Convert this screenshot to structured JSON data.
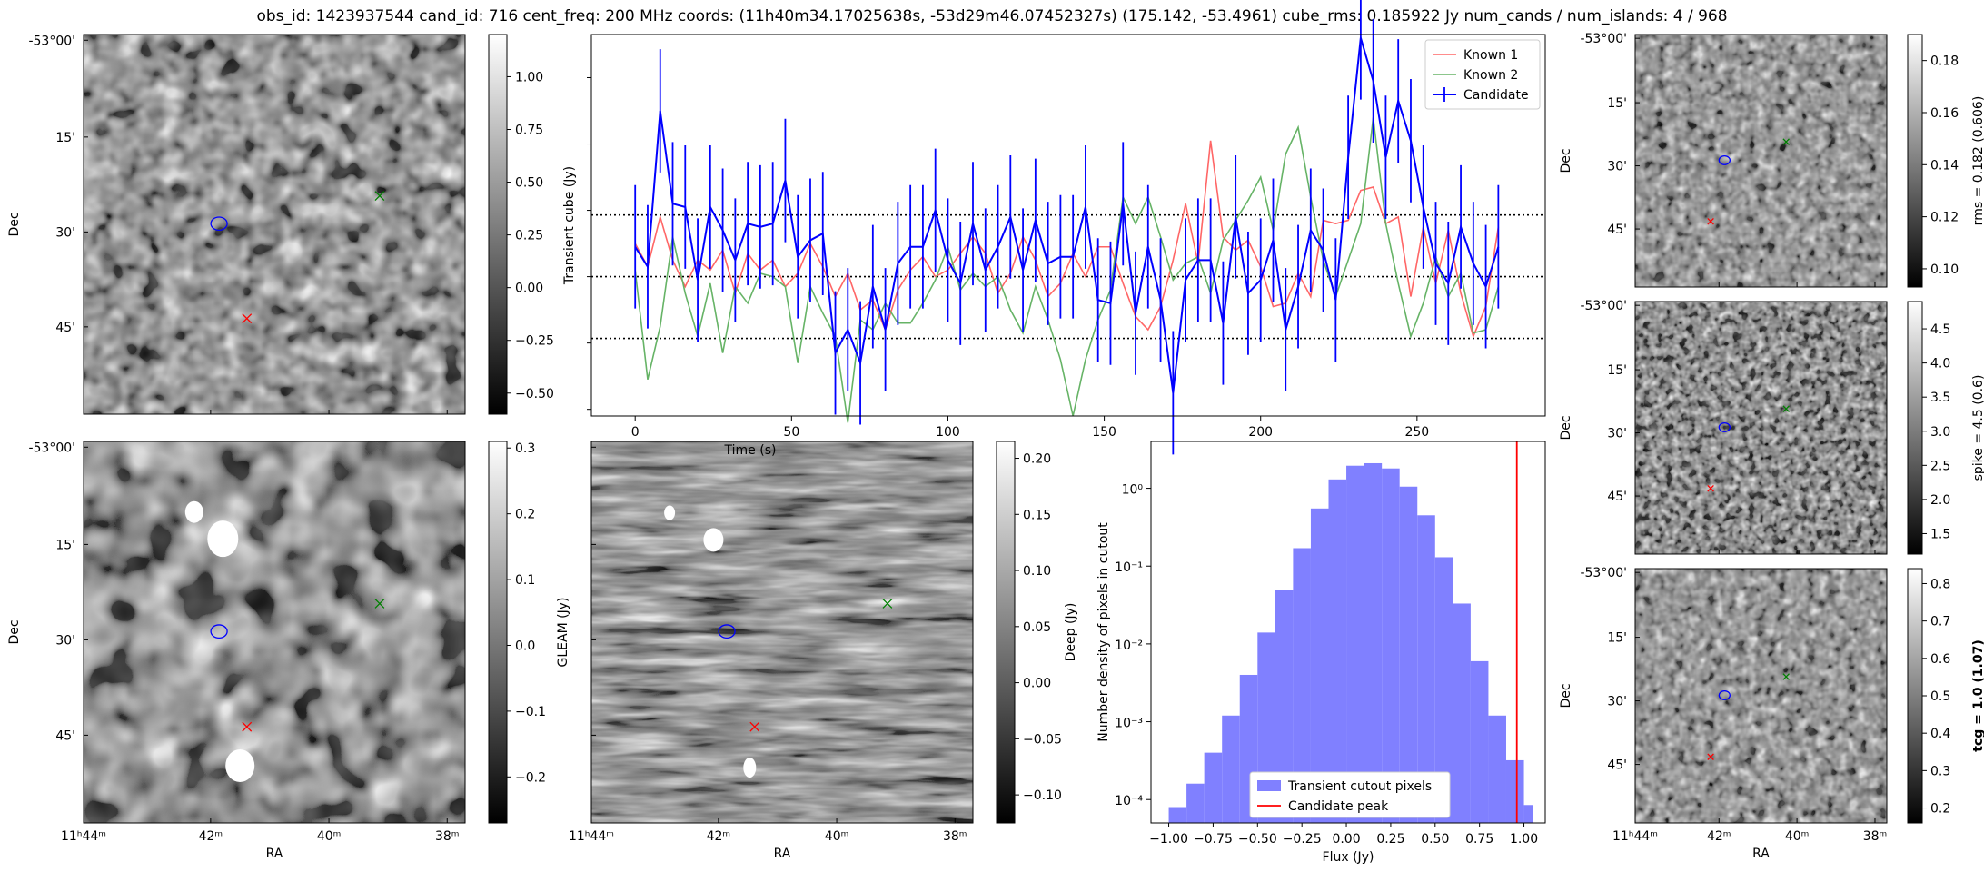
{
  "title": "obs_id: 1423937544 cand_id: 716 cent_freq: 200 MHz coords: (11h40m34.17025638s, -53d29m46.07452327s) (175.142, -53.4961) cube_rms: 0.185922 Jy num_cands / num_islands: 4 / 968",
  "colors": {
    "candidate": "#0000ff",
    "known1": "#ff6666",
    "known2": "#66b366",
    "hist": "#8080ff",
    "peak": "#ff0000",
    "marker_known1": "#ff0000",
    "marker_known2": "#008000"
  },
  "sky_axes": {
    "dec_ticks": [
      "-53°00'",
      "15'",
      "30'",
      "45'"
    ],
    "ra_ticks": [
      "11ʰ44ᵐ",
      "42ᵐ",
      "40ᵐ",
      "38ᵐ"
    ],
    "ra_label": "RA",
    "dec_label": "Dec"
  },
  "chart_data": [
    {
      "id": "transient_cube_image",
      "type": "heatmap",
      "xlabel": "",
      "ylabel": "Dec",
      "colorbar": {
        "label": "",
        "ticks": [
          1.0,
          0.75,
          0.5,
          0.25,
          0.0,
          -0.25,
          -0.5
        ],
        "range": [
          -0.6,
          1.2
        ]
      }
    },
    {
      "id": "lightcurve",
      "type": "line",
      "xlabel": "Time (s)",
      "ylabel": "Transient cube (Jy)",
      "xlim": [
        -14,
        291
      ],
      "ylim": [
        -0.42,
        0.73
      ],
      "xticks": [
        0,
        50,
        100,
        150,
        200,
        250
      ],
      "hlines": [
        0.186,
        0.0,
        -0.186
      ],
      "legend": [
        "Known 1",
        "Known 2",
        "Candidate"
      ],
      "x": [
        0,
        4,
        8,
        12,
        16,
        20,
        24,
        28,
        32,
        36,
        40,
        44,
        48,
        52,
        56,
        60,
        64,
        68,
        72,
        76,
        80,
        84,
        88,
        92,
        96,
        100,
        104,
        108,
        112,
        116,
        120,
        124,
        128,
        132,
        136,
        140,
        144,
        148,
        152,
        156,
        160,
        164,
        168,
        172,
        176,
        180,
        184,
        188,
        192,
        196,
        200,
        204,
        208,
        212,
        216,
        220,
        224,
        228,
        232,
        236,
        240,
        244,
        248,
        252,
        256,
        260,
        264,
        268,
        272,
        276
      ],
      "series": [
        {
          "name": "Known 1",
          "values": [
            0.1,
            0.03,
            0.18,
            0.05,
            -0.03,
            0.05,
            0.02,
            0.08,
            -0.05,
            0.07,
            0.02,
            0.05,
            -0.03,
            0.01,
            0.1,
            0.03,
            -0.06,
            0.01,
            -0.1,
            -0.07,
            -0.16,
            -0.04,
            0.02,
            0.06,
            0.0,
            0.02,
            0.07,
            0.12,
            0.07,
            -0.05,
            0.01,
            0.12,
            0.05,
            -0.06,
            -0.02,
            0.07,
            0.0,
            0.09,
            0.09,
            -0.02,
            -0.12,
            -0.16,
            -0.09,
            0.05,
            0.22,
            0.04,
            0.41,
            0.12,
            0.08,
            0.11,
            0.03,
            -0.09,
            -0.08,
            0.01,
            -0.06,
            0.17,
            0.16,
            0.17,
            0.26,
            0.27,
            0.16,
            0.18,
            -0.06,
            0.15,
            -0.02,
            0.14,
            -0.05,
            -0.18,
            -0.09,
            0.15
          ]
        },
        {
          "name": "Known 2",
          "values": [
            0.02,
            -0.31,
            -0.15,
            0.12,
            -0.05,
            -0.18,
            -0.02,
            -0.23,
            -0.03,
            -0.08,
            0.01,
            0.0,
            -0.03,
            -0.26,
            -0.03,
            -0.11,
            -0.18,
            -0.44,
            -0.13,
            -0.16,
            -0.08,
            -0.14,
            -0.14,
            -0.08,
            -0.01,
            0.09,
            -0.04,
            0.01,
            -0.03,
            0.0,
            -0.1,
            -0.17,
            -0.03,
            -0.13,
            -0.25,
            -0.42,
            -0.25,
            -0.13,
            -0.04,
            0.24,
            0.16,
            0.24,
            0.12,
            -0.01,
            0.04,
            0.06,
            -0.05,
            0.11,
            0.17,
            0.23,
            0.3,
            0.14,
            0.37,
            0.45,
            0.24,
            0.05,
            -0.06,
            0.05,
            0.16,
            0.48,
            0.16,
            -0.02,
            -0.18,
            -0.08,
            0.06,
            -0.06,
            0.01,
            -0.17,
            -0.16,
            -0.03
          ]
        },
        {
          "name": "Candidate",
          "values": [
            0.09,
            0.03,
            0.5,
            0.22,
            0.21,
            -0.01,
            0.21,
            0.14,
            0.05,
            0.16,
            0.15,
            0.16,
            0.29,
            0.06,
            0.11,
            0.13,
            -0.23,
            -0.16,
            -0.26,
            -0.03,
            -0.16,
            0.04,
            0.09,
            0.09,
            0.2,
            0.05,
            -0.02,
            0.16,
            0.02,
            0.09,
            0.18,
            0.02,
            0.17,
            0.04,
            0.06,
            0.06,
            0.21,
            -0.07,
            -0.08,
            0.22,
            -0.11,
            0.09,
            -0.07,
            -0.35,
            -0.01,
            0.05,
            0.05,
            -0.14,
            0.18,
            -0.05,
            -0.01,
            0.11,
            -0.16,
            -0.03,
            0.14,
            0.08,
            -0.07,
            0.36,
            0.72,
            0.59,
            0.36,
            0.53,
            0.41,
            0.21,
            0.04,
            -0.02,
            0.15,
            0.04,
            -0.03,
            0.09
          ]
        }
      ],
      "candidate_errors": 0.186
    },
    {
      "id": "rms_image",
      "type": "heatmap",
      "colorbar": {
        "label": "rms = 0.182 (0.606)",
        "ticks": [
          0.18,
          0.16,
          0.14,
          0.12,
          0.1
        ],
        "range": [
          0.093,
          0.19
        ]
      }
    },
    {
      "id": "gleam_image",
      "type": "heatmap",
      "colorbar": {
        "label": "GLEAM (Jy)",
        "ticks": [
          0.3,
          0.2,
          0.1,
          0.0,
          -0.1,
          -0.2
        ],
        "range": [
          -0.27,
          0.31
        ]
      }
    },
    {
      "id": "deep_image",
      "type": "heatmap",
      "colorbar": {
        "label": "Deep (Jy)",
        "ticks": [
          0.2,
          0.15,
          0.1,
          0.05,
          0.0,
          -0.05,
          -0.1
        ],
        "range": [
          -0.125,
          0.215
        ]
      }
    },
    {
      "id": "histogram",
      "type": "bar",
      "xlabel": "Flux (Jy)",
      "ylabel": "Number density of pixels in cutout",
      "xscale": "linear",
      "yscale": "log",
      "xlim": [
        -1.1,
        1.12
      ],
      "ylim": [
        5e-05,
        4
      ],
      "xticks": [
        -1.0,
        -0.75,
        -0.5,
        -0.25,
        0.0,
        0.25,
        0.5,
        0.75,
        1.0
      ],
      "yticks": [
        "10⁰",
        "10⁻¹",
        "10⁻²",
        "10⁻³",
        "10⁻⁴"
      ],
      "bin_edges": [
        -1.0,
        -0.9,
        -0.8,
        -0.7,
        -0.6,
        -0.5,
        -0.4,
        -0.3,
        -0.2,
        -0.1,
        0.0,
        0.1,
        0.2,
        0.3,
        0.4,
        0.5,
        0.6,
        0.7,
        0.8,
        0.9,
        1.0,
        1.05
      ],
      "values": [
        8e-05,
        0.00016,
        0.0004,
        0.0012,
        0.004,
        0.014,
        0.05,
        0.17,
        0.55,
        1.3,
        1.95,
        2.1,
        1.8,
        1.05,
        0.45,
        0.13,
        0.033,
        0.006,
        0.0012,
        0.00032,
        8.5e-05
      ],
      "peak_line": 0.96,
      "legend": [
        "Transient cutout pixels",
        "Candidate peak"
      ]
    },
    {
      "id": "spike_image",
      "type": "heatmap",
      "colorbar": {
        "label": "spike = 4.5 (0.6)",
        "ticks": [
          4.5,
          4.0,
          3.5,
          3.0,
          2.5,
          2.0,
          1.5
        ],
        "range": [
          1.2,
          4.9
        ]
      }
    },
    {
      "id": "tcg_image",
      "type": "heatmap",
      "colorbar": {
        "label": "tcg = 1.0 (1.07)",
        "ticks": [
          0.8,
          0.7,
          0.6,
          0.5,
          0.4,
          0.3,
          0.2
        ],
        "range": [
          0.16,
          0.84
        ]
      }
    }
  ]
}
